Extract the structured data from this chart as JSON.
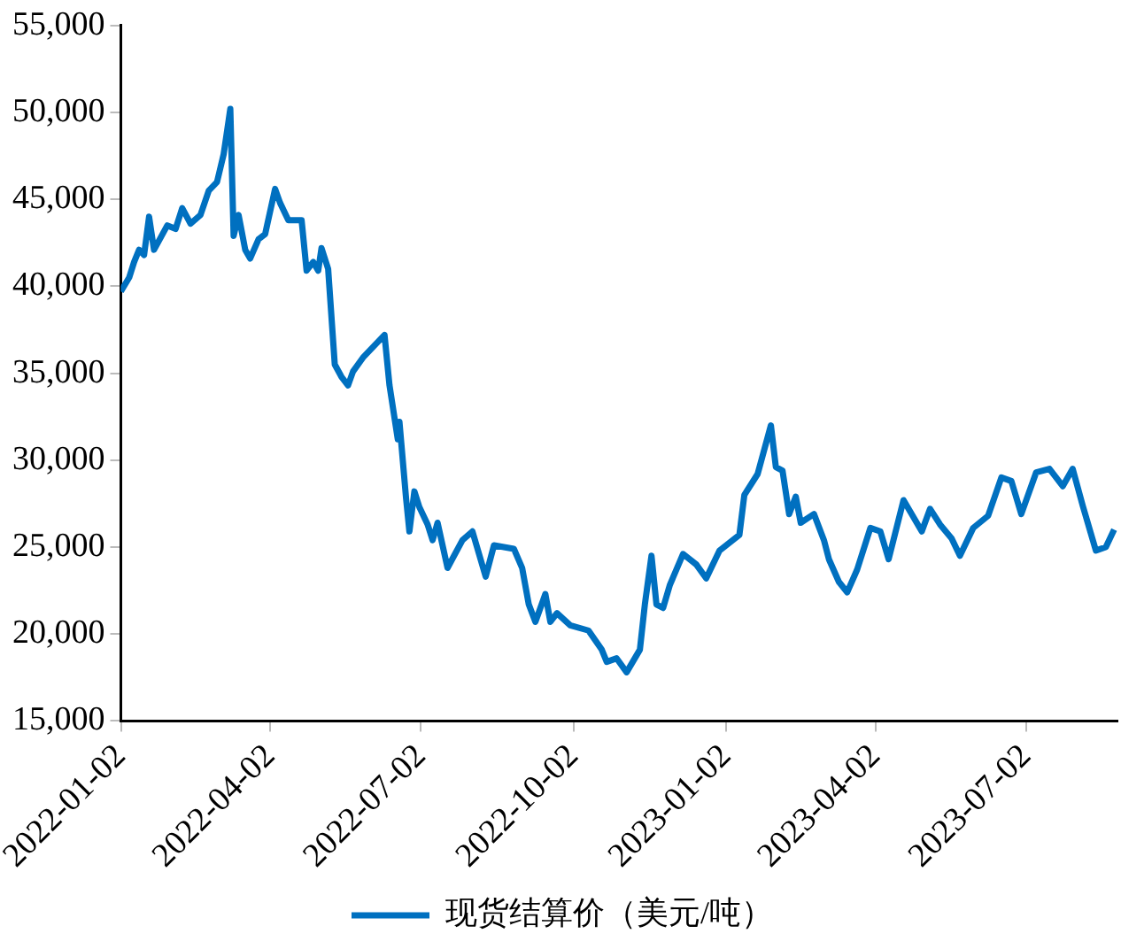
{
  "chart_data": {
    "type": "line",
    "legend": "bottom",
    "grid": false,
    "marker": "none",
    "line_style": "solid",
    "xlim": [
      "2022-01-02",
      "2023-08-26"
    ],
    "xticks": [
      "2022-01-02",
      "2022-04-02",
      "2022-07-02",
      "2022-10-02",
      "2023-01-02",
      "2023-04-02",
      "2023-07-02"
    ],
    "ylim": [
      15000,
      55000
    ],
    "yticks": [
      {
        "value": 15000,
        "label": "15,000"
      },
      {
        "value": 20000,
        "label": "20,000"
      },
      {
        "value": 25000,
        "label": "25,000"
      },
      {
        "value": 30000,
        "label": "30,000"
      },
      {
        "value": 35000,
        "label": "35,000"
      },
      {
        "value": 40000,
        "label": "40,000"
      },
      {
        "value": 45000,
        "label": "45,000"
      },
      {
        "value": 50000,
        "label": "50,000"
      },
      {
        "value": 55000,
        "label": "55,000"
      }
    ],
    "x": [
      "2022-01-02",
      "2022-01-07",
      "2022-01-10",
      "2022-01-13",
      "2022-01-16",
      "2022-01-19",
      "2022-01-22",
      "2022-01-26",
      "2022-01-30",
      "2022-02-04",
      "2022-02-08",
      "2022-02-13",
      "2022-02-19",
      "2022-02-24",
      "2022-03-01",
      "2022-03-05",
      "2022-03-09",
      "2022-03-11",
      "2022-03-14",
      "2022-03-18",
      "2022-03-21",
      "2022-03-26",
      "2022-03-30",
      "2022-04-05",
      "2022-04-08",
      "2022-04-13",
      "2022-04-21",
      "2022-04-24",
      "2022-04-28",
      "2022-05-01",
      "2022-05-03",
      "2022-05-07",
      "2022-05-11",
      "2022-05-15",
      "2022-05-19",
      "2022-05-22",
      "2022-05-28",
      "2022-06-04",
      "2022-06-10",
      "2022-06-13",
      "2022-06-18",
      "2022-06-19",
      "2022-06-23",
      "2022-06-25",
      "2022-06-28",
      "2022-07-01",
      "2022-07-06",
      "2022-07-09",
      "2022-07-12",
      "2022-07-18",
      "2022-07-27",
      "2022-08-02",
      "2022-08-10",
      "2022-08-15",
      "2022-08-27",
      "2022-09-01",
      "2022-09-05",
      "2022-09-09",
      "2022-09-15",
      "2022-09-18",
      "2022-09-22",
      "2022-09-30",
      "2022-10-11",
      "2022-10-19",
      "2022-10-22",
      "2022-10-28",
      "2022-11-03",
      "2022-11-11",
      "2022-11-14",
      "2022-11-18",
      "2022-11-21",
      "2022-11-25",
      "2022-11-29",
      "2022-12-07",
      "2022-12-15",
      "2022-12-21",
      "2022-12-29",
      "2023-01-10",
      "2023-01-13",
      "2023-01-21",
      "2023-01-29",
      "2023-02-01",
      "2023-02-05",
      "2023-02-09",
      "2023-02-13",
      "2023-02-16",
      "2023-02-24",
      "2023-03-02",
      "2023-03-05",
      "2023-03-11",
      "2023-03-16",
      "2023-03-22",
      "2023-03-30",
      "2023-04-05",
      "2023-04-10",
      "2023-04-19",
      "2023-04-30",
      "2023-05-05",
      "2023-05-11",
      "2023-05-18",
      "2023-05-23",
      "2023-05-31",
      "2023-06-09",
      "2023-06-17",
      "2023-06-23",
      "2023-06-29",
      "2023-07-08",
      "2023-07-16",
      "2023-07-24",
      "2023-07-30",
      "2023-08-05",
      "2023-08-13",
      "2023-08-19",
      "2023-08-24"
    ],
    "series": [
      {
        "name": "现货结算价（美元/吨）",
        "color": "#0070c0",
        "values": [
          39700,
          40500,
          41400,
          42100,
          41800,
          44000,
          42100,
          42800,
          43500,
          43300,
          44500,
          43600,
          44100,
          45500,
          46000,
          47600,
          50200,
          42900,
          44100,
          42100,
          41600,
          42700,
          43000,
          45600,
          44800,
          43800,
          43800,
          40900,
          41400,
          40900,
          42200,
          41000,
          35500,
          34800,
          34300,
          35100,
          35900,
          36600,
          37200,
          34300,
          31200,
          32200,
          27800,
          25900,
          28200,
          27300,
          26300,
          25400,
          26400,
          23800,
          25400,
          25900,
          23300,
          25100,
          24900,
          23800,
          21700,
          20700,
          22300,
          20700,
          21200,
          20500,
          20200,
          19100,
          18400,
          18600,
          17800,
          19100,
          21700,
          24500,
          21700,
          21500,
          22800,
          24600,
          24000,
          23200,
          24800,
          25700,
          28000,
          29200,
          32000,
          29600,
          29400,
          26900,
          27900,
          26400,
          26900,
          25400,
          24300,
          23000,
          22400,
          23700,
          26100,
          25900,
          24300,
          27700,
          25900,
          27200,
          26300,
          25500,
          24500,
          26100,
          26800,
          29000,
          28800,
          26900,
          29300,
          29500,
          28500,
          29500,
          27400,
          24800,
          25000,
          26000
        ]
      }
    ]
  }
}
